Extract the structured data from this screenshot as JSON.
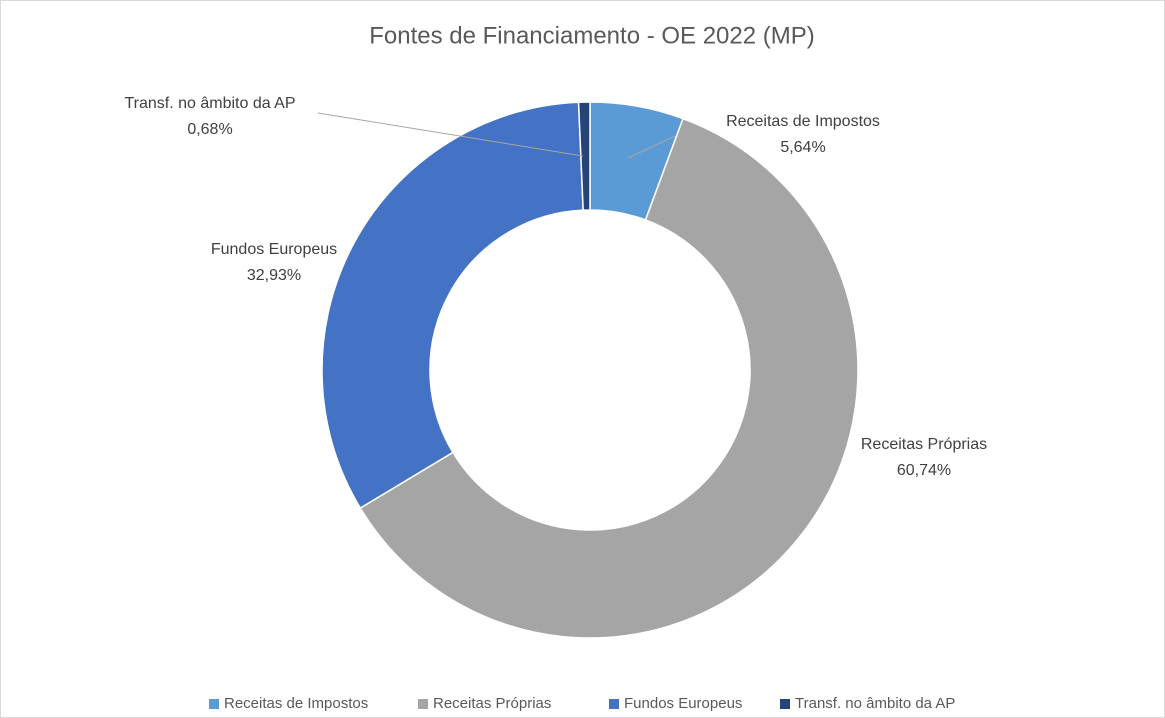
{
  "chart_data": {
    "type": "donut",
    "title": "Fontes de Financiamento - OE 2022 (MP)",
    "categories": [
      "Receitas de Impostos",
      "Receitas Próprias",
      "Fundos Europeus",
      "Transf. no âmbito da AP"
    ],
    "values": [
      5.64,
      60.74,
      32.93,
      0.68
    ],
    "value_labels": [
      "5,64%",
      "60,74%",
      "32,93%",
      "0,68%"
    ],
    "colors": [
      "#5b9bd5",
      "#a5a5a5",
      "#4472c4",
      "#264478"
    ],
    "legend": "bottom"
  }
}
